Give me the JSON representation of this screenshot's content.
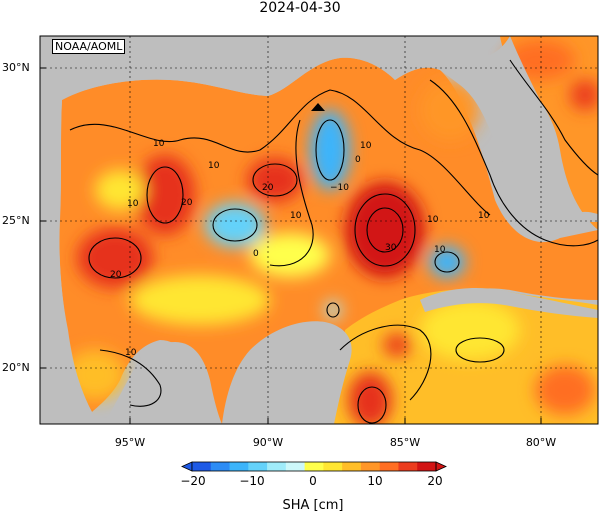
{
  "title": "2024-04-30",
  "credit": "NOAA/AOML",
  "lat_labels": [
    "30°N",
    "25°N",
    "20°N"
  ],
  "lon_labels": [
    "95°W",
    "90°W",
    "85°W",
    "80°W"
  ],
  "colorbar": {
    "label": "SHA [cm]",
    "ticks": [
      "−20",
      "−10",
      "0",
      "10",
      "20"
    ],
    "colors": [
      "#1e5ae6",
      "#2c8cf5",
      "#3cb4fa",
      "#64d2fa",
      "#a0ecfa",
      "#cdf8fa",
      "#ffff4b",
      "#ffe632",
      "#ffbe28",
      "#ff9628",
      "#ff6e23",
      "#eb3c1e",
      "#d21414"
    ]
  },
  "contour_labels": [
    "10",
    "10",
    "10",
    "20",
    "20",
    "20",
    "0",
    "10",
    "10",
    "0",
    "−10",
    "30",
    "10",
    "10",
    "10",
    "10"
  ],
  "colors": {
    "land": "#bebebe",
    "ocean_warm": "#ff8c28",
    "ocean_hot": "#e6321e"
  }
}
